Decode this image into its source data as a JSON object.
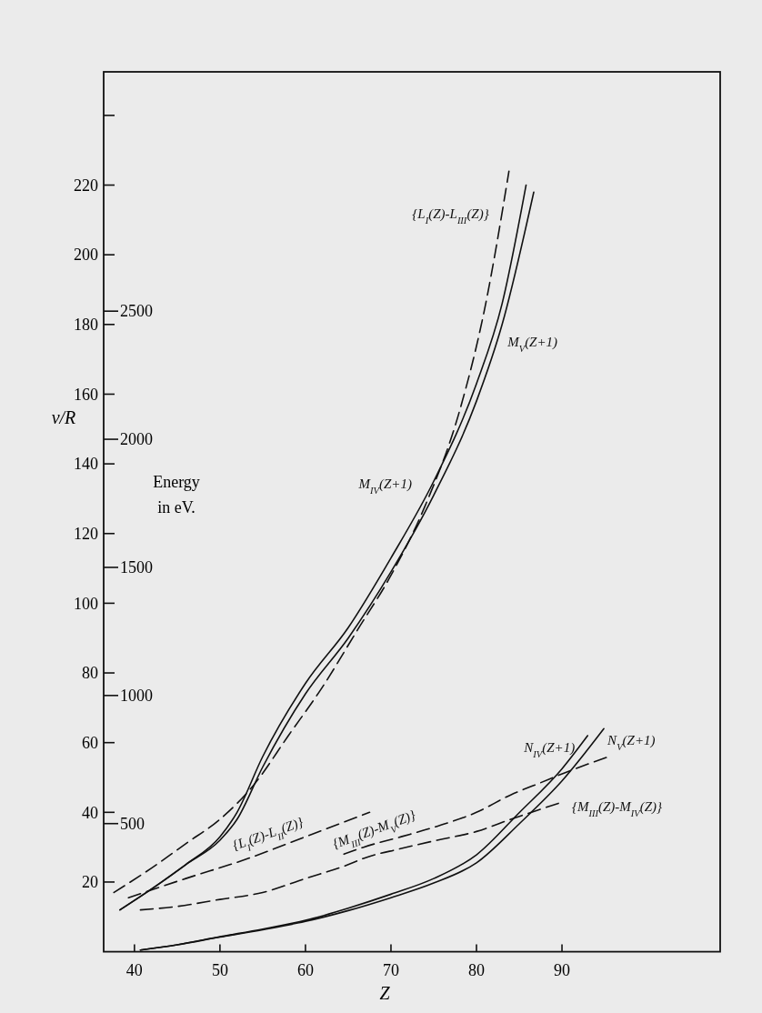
{
  "chart_data": {
    "type": "line",
    "xlabel": "Z",
    "ylabel": "ν/R",
    "y2label": "Energy in eV.",
    "xlim": [
      36.4,
      108.5
    ],
    "xticks": [
      40,
      50,
      60,
      70,
      80,
      90
    ],
    "ylim": [
      0,
      252.5
    ],
    "yticks": [
      20,
      40,
      60,
      80,
      100,
      120,
      140,
      160,
      180,
      200,
      220,
      {
        "value": 240,
        "label": null
      }
    ],
    "y2lim": [
      0,
      3434
    ],
    "y2ticks": [
      500,
      1000,
      1500,
      2000,
      2500
    ],
    "series": [
      {
        "name": "M$_{IV}$(Z+1)",
        "color": "#111111",
        "line_style": "solid",
        "x": [
          38.3,
          42,
          46,
          50,
          52,
          55,
          60,
          65,
          70,
          75,
          80,
          83,
          85.8
        ],
        "values": [
          12,
          18,
          25,
          33,
          40,
          56,
          77,
          93,
          113,
          135,
          163,
          186,
          220
        ]
      },
      {
        "name": "M$_{V}$(Z+1)",
        "color": "#111111",
        "line_style": "solid",
        "x": [
          38.3,
          42,
          46,
          50,
          52,
          55,
          60,
          65,
          70,
          75,
          80,
          83,
          86.7
        ],
        "values": [
          12,
          18,
          25,
          32,
          38,
          53,
          74,
          90,
          109,
          131,
          158,
          180,
          218
        ]
      },
      {
        "name": "{L$_{I}$(Z)-L$_{III}$(Z)}",
        "color": "#111111",
        "line_style": "dashed",
        "x": [
          37.6,
          42,
          46,
          50,
          54,
          58,
          62,
          66,
          70,
          74,
          78,
          81,
          83.8
        ],
        "values": [
          17,
          24,
          31,
          38,
          48,
          62,
          76,
          92,
          108,
          128,
          155,
          185,
          224
        ]
      },
      {
        "name": "{L$_{I}$(Z)-L$_{II}$(Z)}",
        "color": "#111111",
        "line_style": "dashed",
        "x": [
          39.3,
          46,
          53,
          60,
          67.5
        ],
        "values": [
          15.5,
          21,
          26.5,
          33,
          40
        ]
      },
      {
        "name": "{M$_{III}$(Z)-M$_{V}$(Z)}",
        "color": "#111111",
        "line_style": "dashed",
        "x": [
          64.5,
          66.8,
          71.2,
          75.4,
          80,
          84,
          87.5,
          91,
          95.5
        ],
        "values": [
          28,
          30,
          33,
          36,
          40,
          45,
          48.5,
          52,
          56
        ]
      },
      {
        "name": "{M$_{III}$(Z)-M$_{IV}$(Z)}",
        "color": "#111111",
        "line_style": "dashed",
        "x": [
          40.7,
          45,
          50,
          55,
          60,
          65,
          66.8,
          71,
          75.4,
          80,
          84,
          87,
          90.1
        ],
        "values": [
          12,
          13,
          15,
          17,
          21,
          25,
          26.8,
          29.5,
          32,
          34.5,
          38,
          40.5,
          43
        ]
      },
      {
        "name": "N$_{IV}$(Z+1)",
        "color": "#111111",
        "line_style": "solid",
        "x": [
          40.7,
          45,
          50,
          55,
          60,
          65,
          70,
          75,
          80,
          85,
          90,
          93
        ],
        "values": [
          0.5,
          2,
          4.3,
          6.5,
          9,
          12.5,
          16.5,
          21,
          27.8,
          39.9,
          52.5,
          62
        ]
      },
      {
        "name": "N$_{V}$(Z+1)",
        "color": "#111111",
        "line_style": "solid",
        "x": [
          40.7,
          45,
          50,
          55,
          60,
          65,
          70,
          75,
          80,
          85,
          90,
          94.9
        ],
        "values": [
          0.5,
          2,
          4.2,
          6.3,
          8.7,
          11.8,
          15.5,
          19.7,
          25.5,
          36.7,
          49,
          64
        ]
      }
    ]
  }
}
